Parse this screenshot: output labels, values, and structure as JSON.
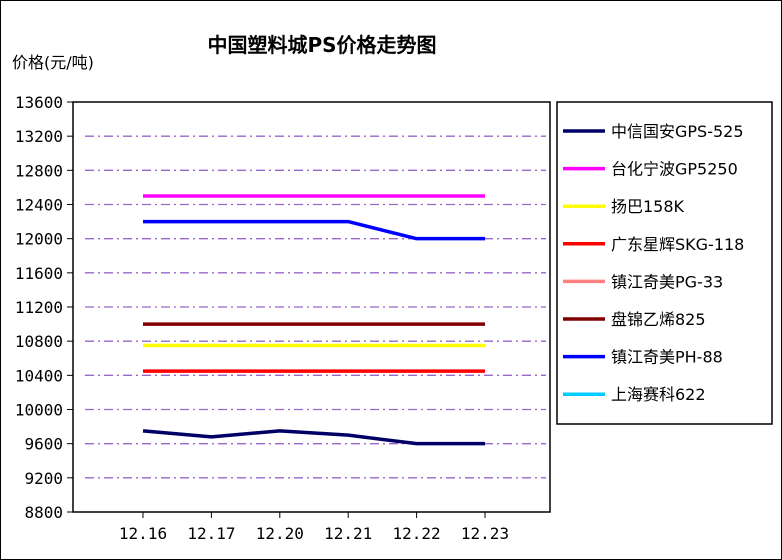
{
  "chart_data": {
    "type": "line",
    "title": "中国塑料城PS价格走势图",
    "ylabel": "价格(元/吨)",
    "xlabel": "",
    "categories": [
      "12.16",
      "12.17",
      "12.20",
      "12.21",
      "12.22",
      "12.23"
    ],
    "ylim": [
      8800,
      13600
    ],
    "yticks": [
      13600,
      13200,
      12800,
      12400,
      12000,
      11600,
      11200,
      10800,
      10400,
      10000,
      9600,
      9200,
      8800
    ],
    "grid": true,
    "legend_position": "right",
    "series": [
      {
        "name": "中信国安GPS-525",
        "color": "#000066",
        "values": [
          9750,
          9680,
          9750,
          9700,
          9600,
          9600
        ]
      },
      {
        "name": "台化宁波GP5250",
        "color": "#ff00ff",
        "values": [
          12500,
          12500,
          12500,
          12500,
          12500,
          12500
        ]
      },
      {
        "name": "扬巴158K",
        "color": "#ffff00",
        "values": [
          10750,
          10750,
          10750,
          10750,
          10750,
          10750
        ]
      },
      {
        "name": "广东星辉SKG-118",
        "color": "#ff0000",
        "values": [
          10450,
          10450,
          10450,
          10450,
          10450,
          10450
        ]
      },
      {
        "name": "镇江奇美PG-33",
        "color": "#ff8080",
        "values": [
          null,
          null,
          null,
          null,
          null,
          null
        ]
      },
      {
        "name": "盘锦乙烯825",
        "color": "#800000",
        "values": [
          11000,
          11000,
          11000,
          11000,
          11000,
          11000
        ]
      },
      {
        "name": "镇江奇美PH-88",
        "color": "#0000ff",
        "values": [
          12200,
          12200,
          12200,
          12200,
          12000,
          12000
        ]
      },
      {
        "name": "上海赛科622",
        "color": "#00ccff",
        "values": [
          null,
          null,
          null,
          null,
          null,
          null
        ]
      }
    ]
  },
  "colors": {
    "gridline": "#9966cc",
    "axis": "#000000"
  }
}
